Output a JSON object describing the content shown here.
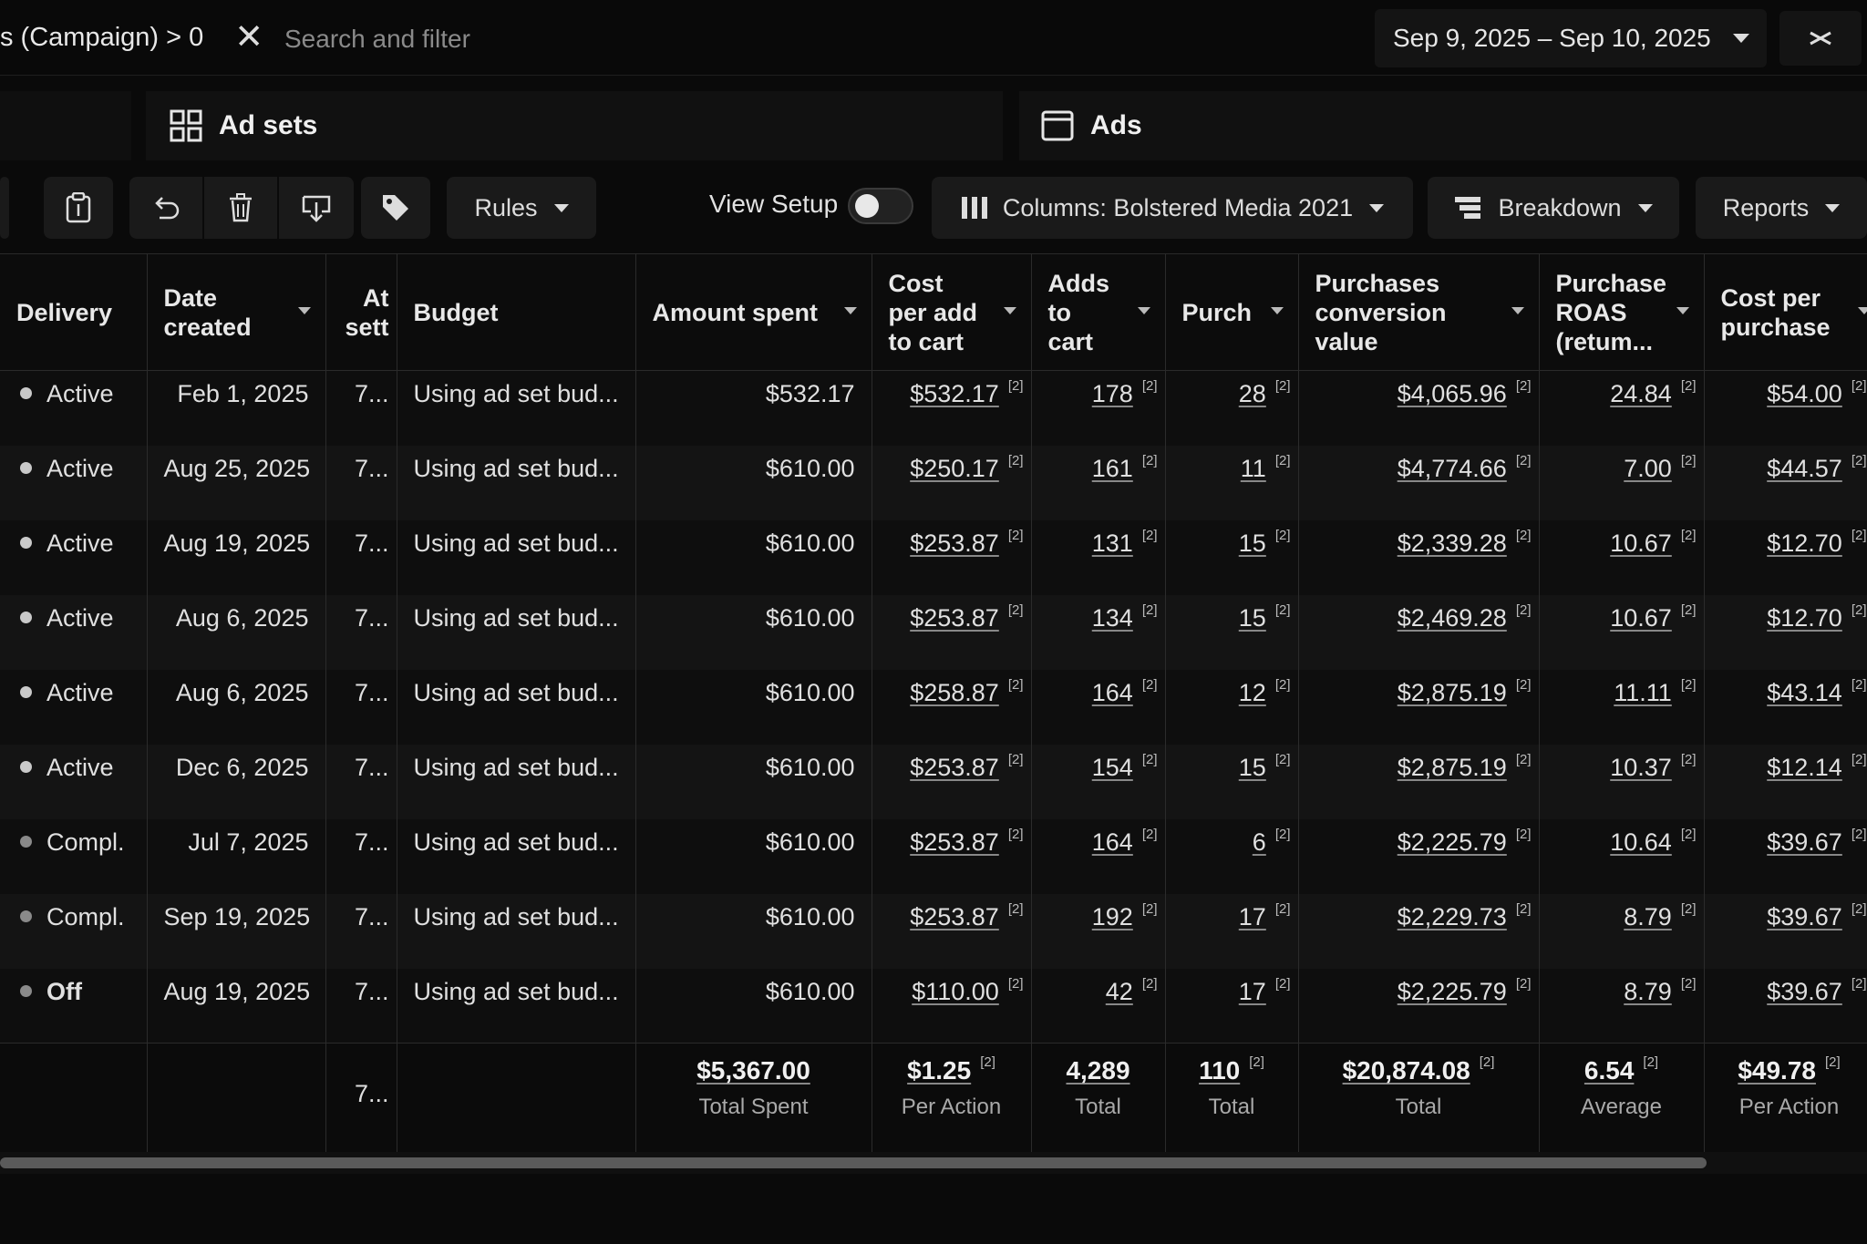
{
  "filter": {
    "chip_label": "s (Campaign) > 0",
    "search_placeholder": "Search and filter"
  },
  "date_range": {
    "label": "Sep 9, 2025 – Sep 10, 2025"
  },
  "tabs": {
    "adsets": "Ad sets",
    "ads": "Ads"
  },
  "toolbar": {
    "rules_label": "Rules",
    "view_setup_label": "View Setup",
    "view_setup_on": false,
    "columns_label": "Columns: Bolstered Media 2021",
    "breakdown_label": "Breakdown",
    "reports_label": "Reports"
  },
  "table": {
    "headers": {
      "delivery": "Delivery",
      "date_created_1": "Date",
      "date_created_2": "created",
      "attr_1": "At",
      "attr_2": "sett",
      "budget": "Budget",
      "amount_spent": "Amount spent",
      "cost_add_1": "Cost",
      "cost_add_2": "per add",
      "cost_add_3": "to cart",
      "adds_1": "Adds",
      "adds_2": "to",
      "adds_3": "cart",
      "purch": "Purch",
      "pcv_1": "Purchases",
      "pcv_2": "conversion",
      "pcv_3": "value",
      "roas_1": "Purchase",
      "roas_2": "ROAS",
      "roas_3": "(retum...",
      "cpp_1": "Cost per",
      "cpp_2": "purchase"
    },
    "superscript": "[2]",
    "rows": [
      {
        "delivery": "Active",
        "date": "Feb 1, 2025",
        "attr": "7...",
        "budget": "Using ad set bud...",
        "spent": "$532.17",
        "cost_add": "$532.17",
        "adds": "178",
        "purch": "28",
        "pcv": "$4,065.96",
        "roas": "24.84",
        "cpp": "$54.00"
      },
      {
        "delivery": "Active",
        "date": "Aug 25, 2025",
        "attr": "7...",
        "budget": "Using ad set bud...",
        "spent": "$610.00",
        "cost_add": "$250.17",
        "adds": "161",
        "purch": "11",
        "pcv": "$4,774.66",
        "roas": "7.00",
        "cpp": "$44.57"
      },
      {
        "delivery": "Active",
        "date": "Aug 19, 2025",
        "attr": "7...",
        "budget": "Using ad set bud...",
        "spent": "$610.00",
        "cost_add": "$253.87",
        "adds": "131",
        "purch": "15",
        "pcv": "$2,339.28",
        "roas": "10.67",
        "cpp": "$12.70"
      },
      {
        "delivery": "Active",
        "date": "Aug 6, 2025",
        "attr": "7...",
        "budget": "Using ad set bud...",
        "spent": "$610.00",
        "cost_add": "$253.87",
        "adds": "134",
        "purch": "15",
        "pcv": "$2,469.28",
        "roas": "10.67",
        "cpp": "$12.70"
      },
      {
        "delivery": "Active",
        "date": "Aug 6, 2025",
        "attr": "7...",
        "budget": "Using ad set bud...",
        "spent": "$610.00",
        "cost_add": "$258.87",
        "adds": "164",
        "purch": "12",
        "pcv": "$2,875.19",
        "roas": "11.11",
        "cpp": "$43.14"
      },
      {
        "delivery": "Active",
        "date": "Dec 6, 2025",
        "attr": "7...",
        "budget": "Using ad set bud...",
        "spent": "$610.00",
        "cost_add": "$253.87",
        "adds": "154",
        "purch": "15",
        "pcv": "$2,875.19",
        "roas": "10.37",
        "cpp": "$12.14"
      },
      {
        "delivery": "Compl.",
        "date": "Jul 7, 2025",
        "attr": "7...",
        "budget": "Using ad set bud...",
        "spent": "$610.00",
        "cost_add": "$253.87",
        "adds": "164",
        "purch": "6",
        "pcv": "$2,225.79",
        "roas": "10.64",
        "cpp": "$39.67"
      },
      {
        "delivery": "Compl.",
        "date": "Sep 19, 2025",
        "attr": "7...",
        "budget": "Using ad set bud...",
        "spent": "$610.00",
        "cost_add": "$253.87",
        "adds": "192",
        "purch": "17",
        "pcv": "$2,229.73",
        "roas": "8.79",
        "cpp": "$39.67"
      },
      {
        "delivery": "Off",
        "date": "Aug 19, 2025",
        "attr": "7...",
        "budget": "Using ad set bud...",
        "spent": "$610.00",
        "cost_add": "$110.00",
        "adds": "42",
        "purch": "17",
        "pcv": "$2,225.79",
        "roas": "8.79",
        "cpp": "$39.67"
      }
    ],
    "totals": {
      "attr": "7...",
      "spent": "$5,367.00",
      "spent_label": "Total Spent",
      "cost_add": "$1.25",
      "cost_add_label": "Per Action",
      "adds": "4,289",
      "adds_label": "Total",
      "purch": "110",
      "purch_label": "Total",
      "pcv": "$20,874.08",
      "pcv_label": "Total",
      "roas": "6.54",
      "roas_label": "Average",
      "cpp": "$49.78",
      "cpp_label": "Per Action"
    }
  }
}
